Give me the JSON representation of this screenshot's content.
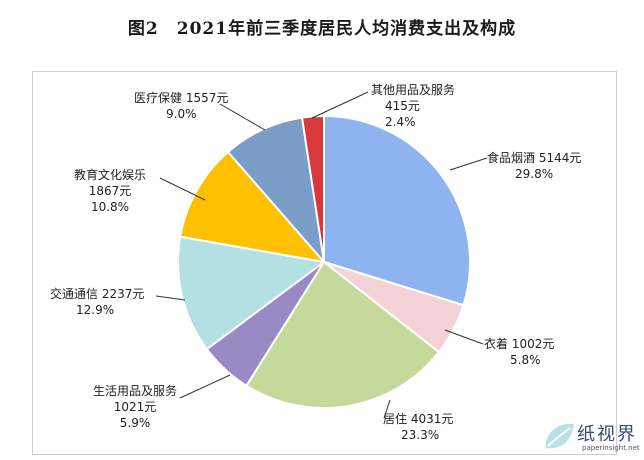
{
  "title": "图2　2021年前三季度居民人均消费支出及构成",
  "chart_data": {
    "type": "pie",
    "slices": [
      {
        "category": "食品烟酒",
        "value": 5144,
        "value_label": "5144元",
        "percent": 29.8,
        "percent_label": "29.8%",
        "color": "#8eb4ef"
      },
      {
        "category": "衣着",
        "value": 1002,
        "value_label": "1002元",
        "percent": 5.8,
        "percent_label": "5.8%",
        "color": "#f4d3d6"
      },
      {
        "category": "居住",
        "value": 4031,
        "value_label": "4031元",
        "percent": 23.3,
        "percent_label": "23.3%",
        "color": "#c5d99a"
      },
      {
        "category": "生活用品及服务",
        "value": 1021,
        "value_label": "1021元",
        "percent": 5.9,
        "percent_label": "5.9%",
        "color": "#9a8ac4"
      },
      {
        "category": "交通通信",
        "value": 2237,
        "value_label": "2237元",
        "percent": 12.9,
        "percent_label": "12.9%",
        "color": "#b3e0e3"
      },
      {
        "category": "教育文化娱乐",
        "value": 1867,
        "value_label": "1867元",
        "percent": 10.8,
        "percent_label": "10.8%",
        "color": "#ffc000"
      },
      {
        "category": "医疗保健",
        "value": 1557,
        "value_label": "1557元",
        "percent": 9.0,
        "percent_label": "9.0%",
        "color": "#7a9ec7"
      },
      {
        "category": "其他用品及服务",
        "value": 415,
        "value_label": "415元",
        "percent": 2.4,
        "percent_label": "2.4%",
        "color": "#d9393c"
      }
    ]
  },
  "watermark": {
    "text": "纸视界",
    "sub": "paperinsight.net"
  }
}
